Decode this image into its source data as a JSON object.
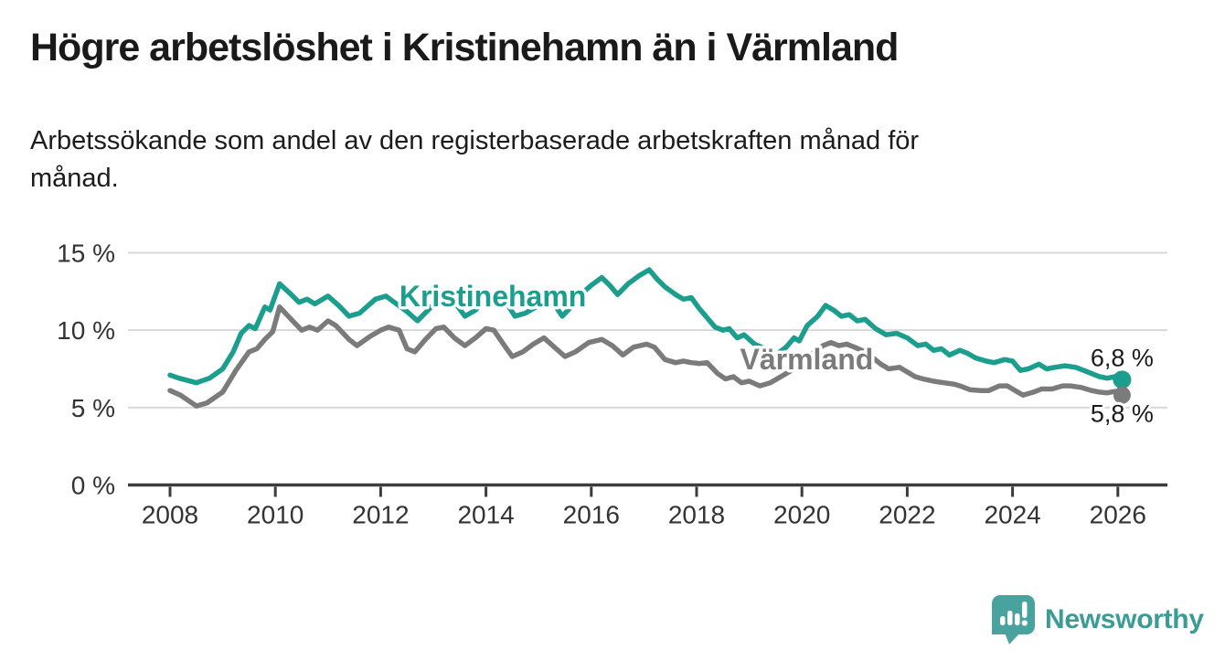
{
  "header": {
    "title": "Högre arbetslöshet i Kristinehamn än i Värmland",
    "subtitle": "Arbetssökande som andel av den registerbaserade arbetskraften månad för månad."
  },
  "chart_data": {
    "type": "line",
    "unit": "%",
    "title": "Högre arbetslöshet i Kristinehamn än i Värmland",
    "xlabel": "",
    "ylabel": "",
    "grid": true,
    "ylim": [
      0,
      15.5
    ],
    "xlim": [
      2007.2,
      2026.95
    ],
    "colors": {
      "axis": "#3c3c3c",
      "gridline": "#d8d8d8",
      "tick_text": "#333333",
      "end_label_text": "#1a1a1a"
    },
    "y_ticks": [
      {
        "value": 0,
        "label": "0 %"
      },
      {
        "value": 5,
        "label": "5 %"
      },
      {
        "value": 10,
        "label": "10 %"
      },
      {
        "value": 15,
        "label": "15 %"
      }
    ],
    "x_ticks": [
      {
        "value": 2008,
        "label": "2008"
      },
      {
        "value": 2010,
        "label": "2010"
      },
      {
        "value": 2012,
        "label": "2012"
      },
      {
        "value": 2014,
        "label": "2014"
      },
      {
        "value": 2016,
        "label": "2016"
      },
      {
        "value": 2018,
        "label": "2018"
      },
      {
        "value": 2020,
        "label": "2020"
      },
      {
        "value": 2022,
        "label": "2022"
      },
      {
        "value": 2024,
        "label": "2024"
      },
      {
        "value": 2026,
        "label": "2026"
      }
    ],
    "series": [
      {
        "name": "Kristinehamn",
        "slug": "kristinehamn",
        "color": "#1b9e8e",
        "end_label": "6,8 %",
        "end_label_side": "above",
        "label_anchor": {
          "year": 2014.13,
          "value": 12.2
        },
        "points": [
          [
            2008.0,
            7.1
          ],
          [
            2008.17,
            6.9
          ],
          [
            2008.5,
            6.6
          ],
          [
            2008.75,
            6.9
          ],
          [
            2009.0,
            7.5
          ],
          [
            2009.2,
            8.6
          ],
          [
            2009.35,
            9.8
          ],
          [
            2009.5,
            10.3
          ],
          [
            2009.62,
            10.1
          ],
          [
            2009.8,
            11.5
          ],
          [
            2009.9,
            11.3
          ],
          [
            2010.08,
            13.0
          ],
          [
            2010.3,
            12.3
          ],
          [
            2010.45,
            11.8
          ],
          [
            2010.6,
            12.0
          ],
          [
            2010.75,
            11.7
          ],
          [
            2011.0,
            12.2
          ],
          [
            2011.2,
            11.6
          ],
          [
            2011.4,
            10.9
          ],
          [
            2011.6,
            11.1
          ],
          [
            2011.9,
            12.0
          ],
          [
            2012.1,
            12.2
          ],
          [
            2012.3,
            11.7
          ],
          [
            2012.5,
            11.2
          ],
          [
            2012.7,
            10.6
          ],
          [
            2012.9,
            11.3
          ],
          [
            2013.1,
            12.0
          ],
          [
            2013.25,
            12.2
          ],
          [
            2013.45,
            11.6
          ],
          [
            2013.6,
            10.9
          ],
          [
            2013.8,
            11.3
          ],
          [
            2014.0,
            12.0
          ],
          [
            2014.2,
            12.3
          ],
          [
            2014.4,
            11.7
          ],
          [
            2014.55,
            10.9
          ],
          [
            2014.75,
            11.1
          ],
          [
            2014.95,
            11.5
          ],
          [
            2015.1,
            11.7
          ],
          [
            2015.25,
            11.9
          ],
          [
            2015.45,
            10.9
          ],
          [
            2015.7,
            11.8
          ],
          [
            2015.9,
            12.6
          ],
          [
            2016.0,
            12.9
          ],
          [
            2016.2,
            13.4
          ],
          [
            2016.35,
            12.9
          ],
          [
            2016.5,
            12.3
          ],
          [
            2016.7,
            13.0
          ],
          [
            2016.9,
            13.5
          ],
          [
            2017.1,
            13.9
          ],
          [
            2017.25,
            13.3
          ],
          [
            2017.4,
            12.8
          ],
          [
            2017.6,
            12.3
          ],
          [
            2017.75,
            12.0
          ],
          [
            2017.9,
            12.1
          ],
          [
            2018.05,
            11.4
          ],
          [
            2018.2,
            10.8
          ],
          [
            2018.35,
            10.2
          ],
          [
            2018.5,
            10.0
          ],
          [
            2018.62,
            10.1
          ],
          [
            2018.77,
            9.5
          ],
          [
            2018.9,
            9.7
          ],
          [
            2019.1,
            9.1
          ],
          [
            2019.3,
            8.8
          ],
          [
            2019.5,
            8.4
          ],
          [
            2019.7,
            8.9
          ],
          [
            2019.85,
            9.5
          ],
          [
            2019.95,
            9.3
          ],
          [
            2020.1,
            10.3
          ],
          [
            2020.3,
            10.9
          ],
          [
            2020.45,
            11.6
          ],
          [
            2020.6,
            11.3
          ],
          [
            2020.75,
            10.9
          ],
          [
            2020.9,
            11.0
          ],
          [
            2021.05,
            10.6
          ],
          [
            2021.2,
            10.7
          ],
          [
            2021.4,
            10.1
          ],
          [
            2021.6,
            9.7
          ],
          [
            2021.8,
            9.8
          ],
          [
            2022.0,
            9.5
          ],
          [
            2022.2,
            9.0
          ],
          [
            2022.35,
            9.1
          ],
          [
            2022.5,
            8.7
          ],
          [
            2022.65,
            8.8
          ],
          [
            2022.8,
            8.4
          ],
          [
            2023.0,
            8.7
          ],
          [
            2023.15,
            8.5
          ],
          [
            2023.3,
            8.2
          ],
          [
            2023.5,
            8.0
          ],
          [
            2023.65,
            7.9
          ],
          [
            2023.85,
            8.1
          ],
          [
            2024.0,
            8.0
          ],
          [
            2024.15,
            7.4
          ],
          [
            2024.3,
            7.5
          ],
          [
            2024.5,
            7.8
          ],
          [
            2024.65,
            7.5
          ],
          [
            2024.8,
            7.6
          ],
          [
            2025.0,
            7.7
          ],
          [
            2025.2,
            7.6
          ],
          [
            2025.35,
            7.4
          ],
          [
            2025.5,
            7.2
          ],
          [
            2025.65,
            7.0
          ],
          [
            2025.8,
            6.9
          ],
          [
            2025.95,
            7.0
          ],
          [
            2026.08,
            6.8
          ]
        ]
      },
      {
        "name": "Värmland",
        "slug": "varmland",
        "color": "#7b7b7b",
        "end_label": "5,8 %",
        "end_label_side": "below",
        "label_anchor": {
          "year": 2020.09,
          "value": 8.12
        },
        "points": [
          [
            2008.0,
            6.1
          ],
          [
            2008.2,
            5.8
          ],
          [
            2008.5,
            5.1
          ],
          [
            2008.7,
            5.3
          ],
          [
            2009.0,
            6.0
          ],
          [
            2009.25,
            7.4
          ],
          [
            2009.5,
            8.6
          ],
          [
            2009.65,
            8.8
          ],
          [
            2009.8,
            9.4
          ],
          [
            2009.95,
            9.9
          ],
          [
            2010.08,
            11.5
          ],
          [
            2010.3,
            10.7
          ],
          [
            2010.5,
            10.0
          ],
          [
            2010.65,
            10.2
          ],
          [
            2010.8,
            10.0
          ],
          [
            2011.0,
            10.6
          ],
          [
            2011.15,
            10.3
          ],
          [
            2011.4,
            9.4
          ],
          [
            2011.55,
            9.0
          ],
          [
            2011.8,
            9.6
          ],
          [
            2012.0,
            10.0
          ],
          [
            2012.15,
            10.2
          ],
          [
            2012.35,
            10.0
          ],
          [
            2012.5,
            8.8
          ],
          [
            2012.65,
            8.6
          ],
          [
            2012.85,
            9.4
          ],
          [
            2013.05,
            10.1
          ],
          [
            2013.2,
            10.2
          ],
          [
            2013.4,
            9.5
          ],
          [
            2013.6,
            9.0
          ],
          [
            2013.8,
            9.5
          ],
          [
            2014.0,
            10.1
          ],
          [
            2014.15,
            10.0
          ],
          [
            2014.35,
            9.0
          ],
          [
            2014.5,
            8.3
          ],
          [
            2014.7,
            8.6
          ],
          [
            2014.9,
            9.1
          ],
          [
            2015.1,
            9.5
          ],
          [
            2015.3,
            8.9
          ],
          [
            2015.5,
            8.3
          ],
          [
            2015.7,
            8.6
          ],
          [
            2015.95,
            9.2
          ],
          [
            2016.2,
            9.4
          ],
          [
            2016.4,
            9.0
          ],
          [
            2016.6,
            8.4
          ],
          [
            2016.8,
            8.9
          ],
          [
            2017.05,
            9.1
          ],
          [
            2017.2,
            8.9
          ],
          [
            2017.4,
            8.1
          ],
          [
            2017.6,
            7.9
          ],
          [
            2017.75,
            8.0
          ],
          [
            2017.9,
            7.9
          ],
          [
            2018.05,
            7.85
          ],
          [
            2018.2,
            7.9
          ],
          [
            2018.4,
            7.2
          ],
          [
            2018.55,
            6.85
          ],
          [
            2018.7,
            7.0
          ],
          [
            2018.85,
            6.6
          ],
          [
            2019.0,
            6.7
          ],
          [
            2019.2,
            6.4
          ],
          [
            2019.4,
            6.6
          ],
          [
            2019.6,
            7.0
          ],
          [
            2019.8,
            7.4
          ],
          [
            2020.0,
            7.9
          ],
          [
            2020.2,
            8.5
          ],
          [
            2020.4,
            9.0
          ],
          [
            2020.55,
            9.2
          ],
          [
            2020.7,
            9.0
          ],
          [
            2020.85,
            9.1
          ],
          [
            2021.0,
            8.9
          ],
          [
            2021.2,
            8.6
          ],
          [
            2021.35,
            8.2
          ],
          [
            2021.5,
            7.8
          ],
          [
            2021.65,
            7.5
          ],
          [
            2021.85,
            7.6
          ],
          [
            2022.0,
            7.3
          ],
          [
            2022.15,
            7.0
          ],
          [
            2022.3,
            6.85
          ],
          [
            2022.5,
            6.7
          ],
          [
            2022.7,
            6.6
          ],
          [
            2022.9,
            6.5
          ],
          [
            2023.0,
            6.4
          ],
          [
            2023.2,
            6.15
          ],
          [
            2023.4,
            6.1
          ],
          [
            2023.55,
            6.1
          ],
          [
            2023.75,
            6.4
          ],
          [
            2023.9,
            6.4
          ],
          [
            2024.05,
            6.1
          ],
          [
            2024.2,
            5.8
          ],
          [
            2024.4,
            6.0
          ],
          [
            2024.55,
            6.2
          ],
          [
            2024.75,
            6.2
          ],
          [
            2024.95,
            6.4
          ],
          [
            2025.1,
            6.4
          ],
          [
            2025.3,
            6.3
          ],
          [
            2025.5,
            6.1
          ],
          [
            2025.65,
            6.0
          ],
          [
            2025.8,
            5.95
          ],
          [
            2025.95,
            6.05
          ],
          [
            2026.08,
            5.8
          ]
        ]
      }
    ]
  },
  "footer": {
    "brand": "Newsworthy"
  }
}
